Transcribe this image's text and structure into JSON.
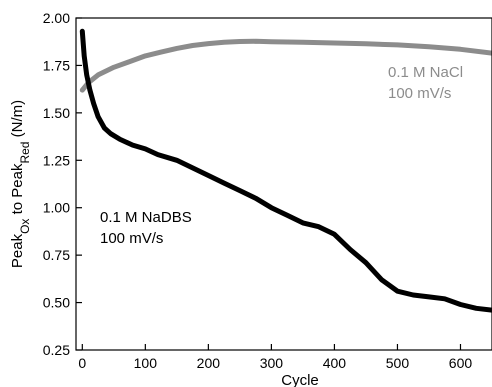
{
  "chart_data": {
    "type": "line",
    "xlabel": "Cycle",
    "ylabel": {
      "parts": [
        {
          "text": "Peak",
          "sub": false
        },
        {
          "text": "Ox",
          "sub": true
        },
        {
          "text": " to Peak",
          "sub": false
        },
        {
          "text": "Red",
          "sub": true
        },
        {
          "text": " (N/m)",
          "sub": false
        }
      ]
    },
    "xlim": [
      -10,
      650
    ],
    "ylim": [
      0.25,
      2.0
    ],
    "x_ticks": [
      0,
      100,
      200,
      300,
      400,
      500,
      600
    ],
    "y_ticks": [
      0.25,
      0.5,
      0.75,
      1.0,
      1.25,
      1.5,
      1.75,
      2.0
    ],
    "x_tick_labels": [
      "0",
      "100",
      "200",
      "300",
      "400",
      "500",
      "600"
    ],
    "y_tick_labels": [
      "0.25",
      "0.50",
      "0.75",
      "1.00",
      "1.25",
      "1.50",
      "1.75",
      "2.00"
    ],
    "grid": false,
    "series": [
      {
        "name_lines": [
          "0.1 M NaCl",
          "100 mV/s"
        ],
        "color": "#8c8c8c",
        "x": [
          0,
          10,
          25,
          50,
          75,
          100,
          125,
          150,
          175,
          200,
          225,
          250,
          275,
          300,
          350,
          400,
          450,
          500,
          550,
          600,
          650
        ],
        "y": [
          1.62,
          1.66,
          1.7,
          1.74,
          1.77,
          1.8,
          1.82,
          1.84,
          1.855,
          1.865,
          1.872,
          1.876,
          1.877,
          1.875,
          1.872,
          1.868,
          1.864,
          1.858,
          1.848,
          1.835,
          1.815
        ]
      },
      {
        "name_lines": [
          "0.1 M NaDBS",
          "100 mV/s"
        ],
        "color": "#000000",
        "x": [
          0,
          3,
          7,
          12,
          18,
          25,
          35,
          45,
          60,
          80,
          100,
          120,
          150,
          175,
          200,
          225,
          250,
          275,
          300,
          325,
          350,
          375,
          400,
          425,
          450,
          475,
          500,
          525,
          550,
          575,
          600,
          625,
          650
        ],
        "y": [
          1.93,
          1.8,
          1.7,
          1.62,
          1.55,
          1.48,
          1.42,
          1.39,
          1.36,
          1.33,
          1.31,
          1.28,
          1.25,
          1.21,
          1.17,
          1.13,
          1.09,
          1.05,
          1.0,
          0.96,
          0.92,
          0.9,
          0.86,
          0.78,
          0.71,
          0.62,
          0.56,
          0.54,
          0.53,
          0.52,
          0.49,
          0.47,
          0.46
        ]
      }
    ]
  }
}
